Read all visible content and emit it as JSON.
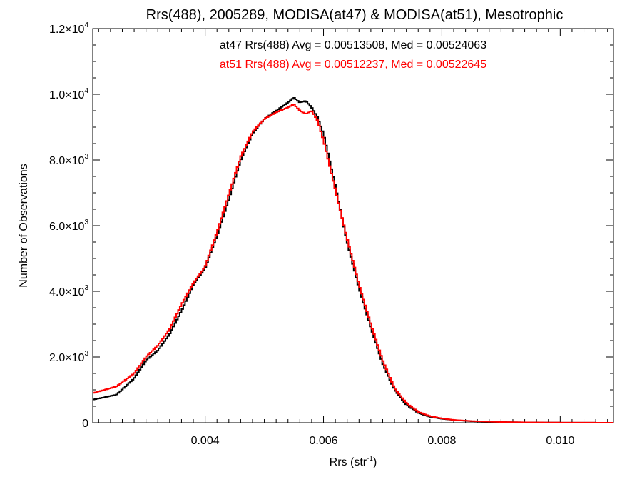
{
  "chart_data": {
    "type": "histogram-step",
    "title": "Rrs(488), 2005289, MODISA(at47) & MODISA(at51), Mesotrophic",
    "xlabel": "Rrs (str",
    "xlabel_sup": "-1",
    "xlabel_close": ")",
    "ylabel": "Number of Observations",
    "xlim": [
      0.0021,
      0.0109
    ],
    "ylim": [
      0,
      12000
    ],
    "x_ticks": [
      0.004,
      0.006,
      0.008,
      0.01
    ],
    "x_tick_labels": [
      "0.004",
      "0.006",
      "0.008",
      "0.010"
    ],
    "y_ticks": [
      {
        "value": 0,
        "mantissa": "0",
        "exponent": ""
      },
      {
        "value": 2000,
        "mantissa": "2.0×10",
        "exponent": "3"
      },
      {
        "value": 4000,
        "mantissa": "4.0×10",
        "exponent": "3"
      },
      {
        "value": 6000,
        "mantissa": "6.0×10",
        "exponent": "3"
      },
      {
        "value": 8000,
        "mantissa": "8.0×10",
        "exponent": "3"
      },
      {
        "value": 10000,
        "mantissa": "1.0×10",
        "exponent": "4"
      },
      {
        "value": 12000,
        "mantissa": "1.2×10",
        "exponent": "4"
      }
    ],
    "bin_width": 3e-05,
    "annotations": [
      {
        "text": "at47 Rrs(488) Avg = 0.00513508, Med = 0.00524063",
        "color": "#000000"
      },
      {
        "text": "at51 Rrs(488) Avg = 0.00512237, Med = 0.00522645",
        "color": "#ff0000"
      }
    ],
    "series": [
      {
        "color": "#000000",
        "points": [
          [
            0.0021,
            700
          ],
          [
            0.0025,
            850
          ],
          [
            0.0028,
            1350
          ],
          [
            0.003,
            1900
          ],
          [
            0.0032,
            2200
          ],
          [
            0.0034,
            2700
          ],
          [
            0.0036,
            3400
          ],
          [
            0.0038,
            4200
          ],
          [
            0.004,
            4700
          ],
          [
            0.0042,
            5700
          ],
          [
            0.0044,
            6800
          ],
          [
            0.0046,
            8000
          ],
          [
            0.0048,
            8800
          ],
          [
            0.005,
            9250
          ],
          [
            0.0052,
            9500
          ],
          [
            0.0054,
            9750
          ],
          [
            0.0055,
            9900
          ],
          [
            0.0056,
            9750
          ],
          [
            0.0057,
            9800
          ],
          [
            0.0058,
            9600
          ],
          [
            0.0059,
            9300
          ],
          [
            0.006,
            8800
          ],
          [
            0.0062,
            7200
          ],
          [
            0.0064,
            5500
          ],
          [
            0.0066,
            4100
          ],
          [
            0.0068,
            2900
          ],
          [
            0.007,
            1800
          ],
          [
            0.0072,
            1000
          ],
          [
            0.0074,
            550
          ],
          [
            0.0076,
            300
          ],
          [
            0.0078,
            180
          ],
          [
            0.008,
            120
          ],
          [
            0.0082,
            80
          ],
          [
            0.0085,
            45
          ],
          [
            0.009,
            20
          ],
          [
            0.0095,
            8
          ],
          [
            0.01,
            4
          ],
          [
            0.0109,
            0
          ]
        ]
      },
      {
        "color": "#ff0000",
        "points": [
          [
            0.0021,
            900
          ],
          [
            0.0025,
            1100
          ],
          [
            0.0028,
            1500
          ],
          [
            0.003,
            2000
          ],
          [
            0.0032,
            2350
          ],
          [
            0.0034,
            2850
          ],
          [
            0.0036,
            3600
          ],
          [
            0.0038,
            4250
          ],
          [
            0.004,
            4750
          ],
          [
            0.0042,
            5800
          ],
          [
            0.0044,
            6950
          ],
          [
            0.0046,
            8100
          ],
          [
            0.0048,
            8850
          ],
          [
            0.005,
            9250
          ],
          [
            0.0052,
            9450
          ],
          [
            0.0054,
            9600
          ],
          [
            0.0055,
            9700
          ],
          [
            0.0056,
            9500
          ],
          [
            0.0057,
            9400
          ],
          [
            0.0058,
            9500
          ],
          [
            0.0059,
            9200
          ],
          [
            0.006,
            8600
          ],
          [
            0.0062,
            7100
          ],
          [
            0.0064,
            5600
          ],
          [
            0.0066,
            4200
          ],
          [
            0.0068,
            3000
          ],
          [
            0.007,
            1900
          ],
          [
            0.0072,
            1050
          ],
          [
            0.0074,
            600
          ],
          [
            0.0076,
            330
          ],
          [
            0.0078,
            200
          ],
          [
            0.008,
            130
          ],
          [
            0.0082,
            85
          ],
          [
            0.0085,
            50
          ],
          [
            0.009,
            22
          ],
          [
            0.0095,
            9
          ],
          [
            0.01,
            4
          ],
          [
            0.0109,
            0
          ]
        ]
      }
    ]
  }
}
